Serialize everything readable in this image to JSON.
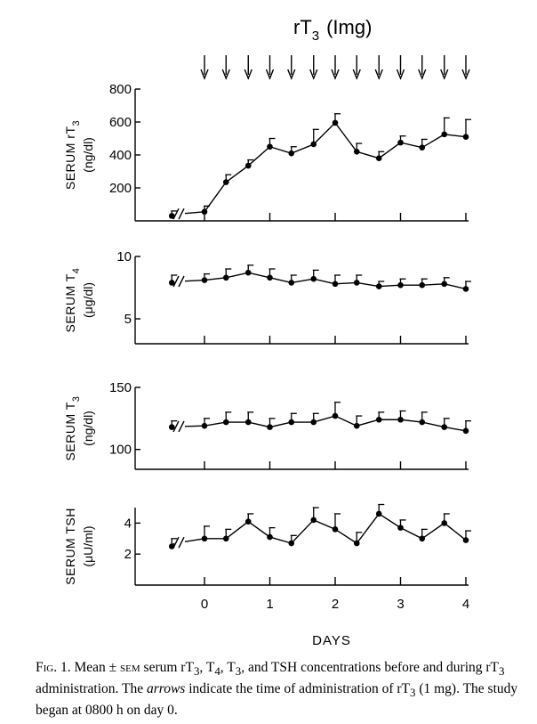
{
  "treatment_label": {
    "main": "rT",
    "sub": "3",
    "dose": "(Img)"
  },
  "xlabel": "DAYS",
  "x_tick_labels": [
    "0",
    "1",
    "2",
    "3",
    "4"
  ],
  "dose_times": [
    0,
    0.33,
    0.67,
    1,
    1.33,
    1.67,
    2,
    2.33,
    2.67,
    3,
    3.33,
    3.67,
    4
  ],
  "chart_data": [
    {
      "type": "line",
      "ylabel": {
        "line1": "SERUM rT",
        "sub": "3",
        "line2": "(ng/dl)"
      },
      "ylim": [
        0,
        800
      ],
      "yticks": [
        200,
        400,
        600,
        800
      ],
      "x": [
        -0.5,
        0,
        0.33,
        0.67,
        1,
        1.33,
        1.67,
        2,
        2.33,
        2.67,
        3,
        3.33,
        3.67,
        4
      ],
      "values": [
        30,
        55,
        235,
        335,
        450,
        410,
        465,
        595,
        420,
        380,
        475,
        445,
        525,
        510
      ],
      "errors": [
        30,
        35,
        45,
        35,
        50,
        40,
        90,
        55,
        50,
        40,
        40,
        50,
        100,
        105
      ]
    },
    {
      "type": "line",
      "ylabel": {
        "line1": "SERUM T",
        "sub": "4",
        "line2": "(μg/dl)"
      },
      "ylim": [
        3,
        10
      ],
      "yticks": [
        5,
        10
      ],
      "x": [
        -0.5,
        0,
        0.33,
        0.67,
        1,
        1.33,
        1.67,
        2,
        2.33,
        2.67,
        3,
        3.33,
        3.67,
        4
      ],
      "values": [
        7.9,
        8.1,
        8.3,
        8.7,
        8.3,
        7.9,
        8.2,
        7.8,
        7.9,
        7.6,
        7.7,
        7.7,
        7.8,
        7.4
      ],
      "errors": [
        0.6,
        0.5,
        0.7,
        0.6,
        0.7,
        0.6,
        0.7,
        0.7,
        0.6,
        0.4,
        0.5,
        0.5,
        0.5,
        0.6
      ]
    },
    {
      "type": "line",
      "ylabel": {
        "line1": "SERUM T",
        "sub": "3",
        "line2": "(ng/dl)"
      },
      "ylim": [
        84,
        150
      ],
      "yticks": [
        100,
        150
      ],
      "x": [
        -0.5,
        0,
        0.33,
        0.67,
        1,
        1.33,
        1.67,
        2,
        2.33,
        2.67,
        3,
        3.33,
        3.67,
        4
      ],
      "values": [
        118,
        119,
        122,
        122,
        118,
        122,
        122,
        127,
        119,
        124,
        124,
        122,
        118,
        115
      ],
      "errors": [
        5,
        6,
        8,
        8,
        7,
        7,
        7,
        11,
        8,
        6,
        7,
        8,
        7,
        8
      ]
    },
    {
      "type": "line",
      "ylabel": {
        "line1": "SERUM TSH",
        "sub": "",
        "line2": "(μU/ml)"
      },
      "ylim": [
        0,
        5
      ],
      "yticks": [
        2,
        4
      ],
      "x": [
        -0.5,
        0,
        0.33,
        0.67,
        1,
        1.33,
        1.67,
        2,
        2.33,
        2.67,
        3,
        3.33,
        3.67,
        4
      ],
      "values": [
        2.5,
        3.0,
        3.0,
        4.1,
        3.1,
        2.7,
        4.2,
        3.6,
        2.7,
        4.6,
        3.7,
        3.0,
        4.0,
        2.9
      ],
      "errors": [
        0.5,
        0.8,
        0.6,
        0.5,
        0.6,
        0.5,
        0.8,
        1.0,
        0.7,
        0.6,
        0.5,
        0.6,
        0.6,
        0.6
      ]
    }
  ],
  "caption": {
    "fig_label": "Fig. 1.",
    "text_1": " Mean ± ",
    "sem": "sem",
    "text_2": " serum rT",
    "sub_a": "3",
    "text_3": ", T",
    "sub_b": "4",
    "text_4": ", T",
    "sub_c": "3",
    "text_5": ", and TSH concentrations before and during rT",
    "sub_d": "3",
    "text_6": " administration. The ",
    "arrows_word": "arrows",
    "text_7": " indicate the time of administration of rT",
    "sub_e": "3",
    "text_8": " (1 mg). The study began at 0800 h on day 0."
  }
}
